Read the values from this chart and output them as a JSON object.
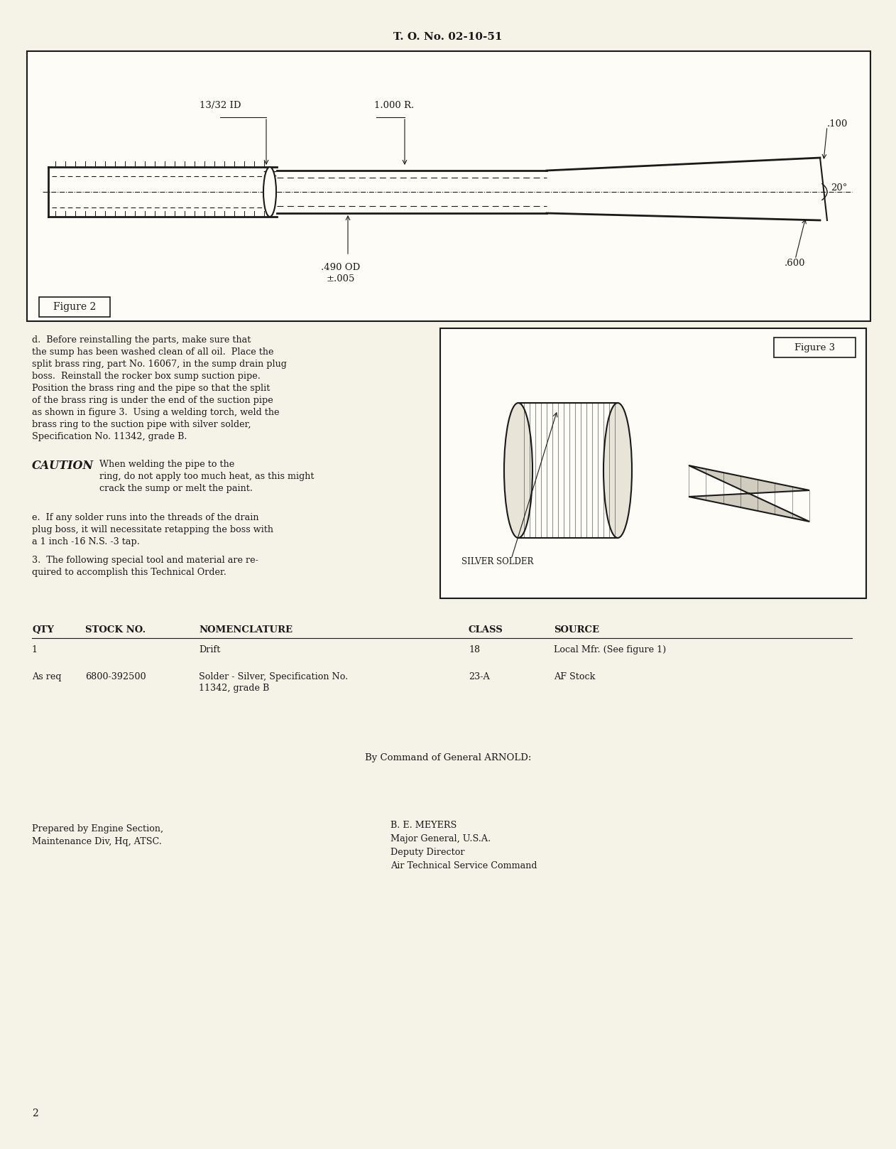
{
  "bg_color": "#f5f2e8",
  "page_bg": "#f5f2e8",
  "header_text": "T. O. No. 02-10-51",
  "page_number": "2",
  "figure2_label": "Figure 2",
  "figure3_label": "Figure 3",
  "dim_labels": [
    "13/32 ID",
    "1.000 R.",
    ".100",
    "20°",
    ".490 OD\n±.005",
    ".600"
  ],
  "silver_solder_label": "SILVER SOLDER",
  "para_d": "d.  Before reinstalling the parts, make sure that the sump has been washed clean of all oil.  Place the split brass ring, part No. 16067, in the sump drain plug boss.  Reinstall the rocker box sump suction pipe. Position the brass ring and the pipe so that the split of the brass ring is under the end of the suction pipe as shown in figure 3.  Using a welding torch, weld the brass ring to the suction pipe with silver solder, Specification No. 11342, grade B.",
  "caution_head": "CAUTION",
  "caution_text": "When welding the pipe to the ring, do not apply too much heat, as this might crack the sump or melt the paint.",
  "para_e": "e.  If any solder runs into the threads of the drain plug boss, it will necessitate retapping the boss with a 1 inch -16 N.S. -3 tap.",
  "para_3": "3.  The following special tool and material are required to accomplish this Technical Order.",
  "table_headers": [
    "QTY",
    "STOCK NO.",
    "NOMENCLATURE",
    "CLASS",
    "SOURCE"
  ],
  "table_rows": [
    [
      "1",
      "",
      "Drift",
      "18",
      "Local Mfr. (See figure 1)"
    ],
    [
      "As req",
      "6800-392500",
      "Solder - Silver, Specification No.\n11342, grade B",
      "23-A",
      "AF Stock"
    ]
  ],
  "command_text": "By Command of General ARNOLD:",
  "prepared_by": "Prepared by Engine Section,\nMaintenance Div, Hq, ATSC.",
  "signed_by": "B. E. MEYERS\nMajor General, U.S.A.\nDeputy Director\nAir Technical Service Command"
}
